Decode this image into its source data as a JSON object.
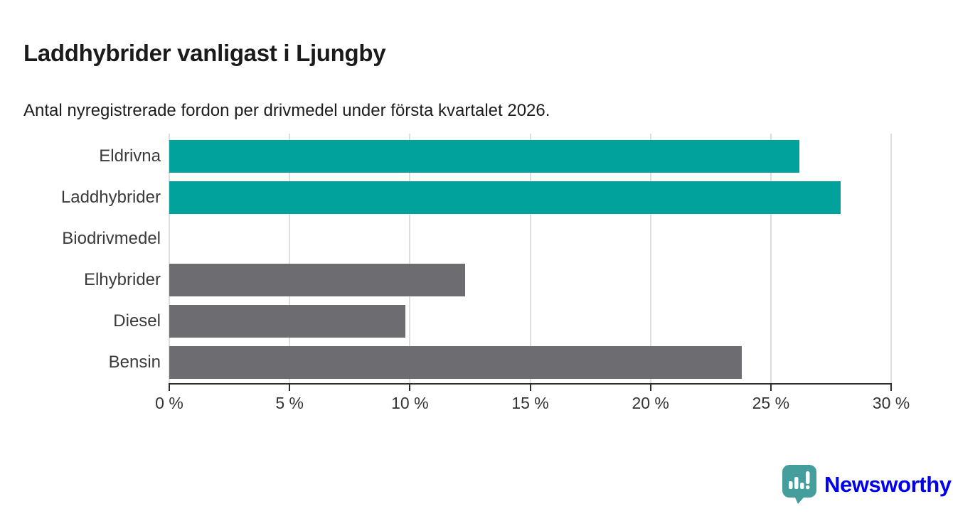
{
  "header": {
    "title": "Laddhybrider vanligast i Ljungby",
    "subtitle": "Antal nyregistrerade fordon per drivmedel under första kvartalet 2026."
  },
  "chart_data": {
    "type": "bar",
    "orientation": "horizontal",
    "title": "Laddhybrider vanligast i Ljungby",
    "subtitle": "Antal nyregistrerade fordon per drivmedel under första kvartalet 2026.",
    "categories": [
      "Eldrivna",
      "Laddhybrider",
      "Biodrivmedel",
      "Elhybrider",
      "Diesel",
      "Bensin"
    ],
    "values": [
      26.2,
      27.9,
      0,
      12.3,
      9.8,
      23.8
    ],
    "unit": "%",
    "xlabel": "",
    "ylabel": "",
    "xlim": [
      0,
      30
    ],
    "x_tick_values": [
      0,
      5,
      10,
      15,
      20,
      25,
      30
    ],
    "x_tick_labels": [
      "0 %",
      "5 %",
      "10 %",
      "15 %",
      "20 %",
      "25 %",
      "30 %"
    ],
    "grid": true,
    "legend": false,
    "colors": {
      "highlight": "#00A29B",
      "default": "#6C6C71",
      "gridline": "#dedede",
      "axis": "#2e2e2e"
    },
    "bar_color_keys": [
      "highlight",
      "highlight",
      "default",
      "default",
      "default",
      "default"
    ]
  },
  "branding": {
    "name": "Newsworthy",
    "color": "#459E9C",
    "icon": "newsworthy-logo-icon"
  }
}
